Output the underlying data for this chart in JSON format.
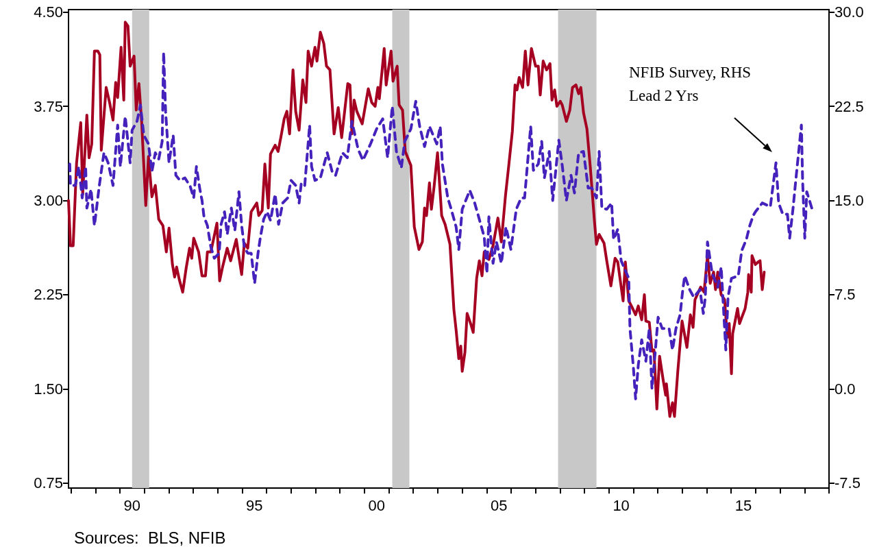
{
  "chart_data": {
    "type": "line",
    "xlim": [
      1987.4,
      2018.5
    ],
    "xticks": [
      {
        "value": 1987.5,
        "label": null
      },
      {
        "value": 1988.5,
        "label": null
      },
      {
        "value": 1989.5,
        "label": null
      },
      {
        "value": 1990,
        "label": "90"
      },
      {
        "value": 1990.5,
        "label": null
      },
      {
        "value": 1991.5,
        "label": null
      },
      {
        "value": 1992.5,
        "label": null
      },
      {
        "value": 1993.5,
        "label": null
      },
      {
        "value": 1994.5,
        "label": null
      },
      {
        "value": 1995,
        "label": "95"
      },
      {
        "value": 1995.5,
        "label": null
      },
      {
        "value": 1996.5,
        "label": null
      },
      {
        "value": 1997.5,
        "label": null
      },
      {
        "value": 1998.5,
        "label": null
      },
      {
        "value": 1999.5,
        "label": null
      },
      {
        "value": 2000,
        "label": "00"
      },
      {
        "value": 2000.5,
        "label": null
      },
      {
        "value": 2001.5,
        "label": null
      },
      {
        "value": 2002.5,
        "label": null
      },
      {
        "value": 2003.5,
        "label": null
      },
      {
        "value": 2004.5,
        "label": null
      },
      {
        "value": 2005,
        "label": "05"
      },
      {
        "value": 2005.5,
        "label": null
      },
      {
        "value": 2006.5,
        "label": null
      },
      {
        "value": 2007.5,
        "label": null
      },
      {
        "value": 2008.5,
        "label": null
      },
      {
        "value": 2009.5,
        "label": null
      },
      {
        "value": 2010,
        "label": "10"
      },
      {
        "value": 2010.5,
        "label": null
      },
      {
        "value": 2011.5,
        "label": null
      },
      {
        "value": 2012.5,
        "label": null
      },
      {
        "value": 2013.5,
        "label": null
      },
      {
        "value": 2014.5,
        "label": null
      },
      {
        "value": 2015,
        "label": "15"
      },
      {
        "value": 2015.5,
        "label": null
      },
      {
        "value": 2016.5,
        "label": null
      },
      {
        "value": 2017.5,
        "label": null
      },
      {
        "value": 2018.5,
        "label": null
      }
    ],
    "ylim": [
      0.71,
      4.52
    ],
    "yticks": [
      {
        "value": 0.75,
        "label": "0.75"
      },
      {
        "value": 1.5,
        "label": "1.50"
      },
      {
        "value": 2.25,
        "label": "2.25"
      },
      {
        "value": 3,
        "label": "3.00"
      },
      {
        "value": 3.75,
        "label": "3.75"
      },
      {
        "value": 4.5,
        "label": "4.50"
      }
    ],
    "y2lim": [
      -7.9,
      30.2
    ],
    "y2ticks": [
      -7.5,
      {
        "value": 0,
        "label": "0.0"
      },
      7.5,
      {
        "value": 15,
        "label": "15.0"
      },
      22.5,
      {
        "value": 30,
        "label": "30.0"
      }
    ],
    "bands": [
      {
        "axis": "x",
        "from": 1990.0,
        "to": 1990.7,
        "color": "#c8c8c8"
      },
      {
        "axis": "x",
        "from": 2000.64,
        "to": 2001.34,
        "color": "#c8c8c8"
      },
      {
        "axis": "x",
        "from": 2007.42,
        "to": 2008.99,
        "color": "#c8c8c8"
      }
    ],
    "annotations": [
      "NFIB Survey, RHS\nLead 2 Yrs",
      "Sources:  BLS, NFIB"
    ],
    "series": [
      {
        "color": "#a50021",
        "line_style": "solid",
        "x": [
          1987.4,
          1987.48,
          1987.59,
          1987.73,
          1987.9,
          1987.98,
          1988.15,
          1988.24,
          1988.35,
          1988.46,
          1988.6,
          1988.68,
          1988.74,
          1988.94,
          1989.08,
          1989.22,
          1989.33,
          1989.41,
          1989.55,
          1989.66,
          1989.72,
          1989.83,
          1989.92,
          1990.08,
          1990.17,
          1990.28,
          1990.39,
          1990.56,
          1990.67,
          1990.81,
          1990.95,
          1991.09,
          1991.26,
          1991.4,
          1991.51,
          1991.65,
          1991.74,
          1991.82,
          1991.93,
          1992.07,
          1992.21,
          1992.35,
          1992.44,
          1992.52,
          1992.72,
          1992.86,
          1993.0,
          1993.08,
          1993.22,
          1993.47,
          1993.58,
          1993.7,
          1993.89,
          1994.03,
          1994.26,
          1994.48,
          1994.59,
          1994.73,
          1994.87,
          1995.1,
          1995.18,
          1995.32,
          1995.43,
          1995.57,
          1995.66,
          1995.85,
          1995.97,
          1996.08,
          1996.22,
          1996.33,
          1996.44,
          1996.58,
          1996.69,
          1996.83,
          1996.98,
          1997.11,
          1997.2,
          1997.34,
          1997.48,
          1997.56,
          1997.7,
          1997.84,
          1997.95,
          1998.09,
          1998.26,
          1998.43,
          1998.57,
          1998.82,
          1998.91,
          1998.99,
          1999.08,
          1999.19,
          1999.41,
          1999.66,
          1999.8,
          1999.94,
          2000.05,
          2000.11,
          2000.31,
          2000.39,
          2000.59,
          2000.67,
          2000.84,
          2000.92,
          2001.06,
          2001.17,
          2001.4,
          2001.54,
          2001.73,
          2001.87,
          2001.96,
          2002.04,
          2002.16,
          2002.24,
          2002.35,
          2002.49,
          2002.66,
          2002.8,
          2003.0,
          2003.16,
          2003.25,
          2003.36,
          2003.44,
          2003.5,
          2003.61,
          2003.7,
          2003.86,
          2003.95,
          2004.09,
          2004.2,
          2004.31,
          2004.4,
          2004.59,
          2004.76,
          2004.96,
          2005.1,
          2005.27,
          2005.41,
          2005.55,
          2005.66,
          2005.74,
          2005.83,
          2005.97,
          2006.08,
          2006.19,
          2006.33,
          2006.5,
          2006.61,
          2006.69,
          2006.81,
          2006.95,
          2007.09,
          2007.17,
          2007.28,
          2007.37,
          2007.51,
          2007.59,
          2007.76,
          2007.9,
          2008.01,
          2008.15,
          2008.26,
          2008.35,
          2008.46,
          2008.6,
          2008.74,
          2008.91,
          2008.99,
          2009.1,
          2009.3,
          2009.41,
          2009.58,
          2009.75,
          2009.86,
          2010.08,
          2010.17,
          2010.31,
          2010.42,
          2010.59,
          2010.7,
          2010.84,
          2010.95,
          2011.01,
          2011.15,
          2011.26,
          2011.34,
          2011.46,
          2011.57,
          2011.71,
          2011.82,
          2011.85,
          2011.99,
          2012.1,
          2012.18,
          2012.32,
          2012.49,
          2012.69,
          2012.83,
          2012.94,
          2013.02,
          2013.25,
          2013.39,
          2013.53,
          2013.64,
          2013.78,
          2013.86,
          2013.95,
          2014.09,
          2014.23,
          2014.34,
          2014.42,
          2014.51,
          2014.56,
          2014.76,
          2014.84,
          2015.07,
          2015.18,
          2015.21,
          2015.32,
          2015.35,
          2015.49,
          2015.6,
          2015.68,
          2015.77,
          2015.85
        ],
        "values": [
          3.0,
          2.64,
          2.64,
          3.3,
          3.62,
          3.05,
          3.68,
          3.34,
          3.45,
          4.19,
          4.19,
          4.16,
          3.4,
          3.9,
          3.78,
          3.64,
          3.94,
          3.82,
          4.22,
          3.8,
          4.42,
          4.39,
          4.07,
          4.15,
          3.72,
          3.93,
          3.63,
          2.96,
          3.35,
          3.03,
          3.12,
          2.85,
          2.8,
          2.59,
          2.78,
          2.49,
          2.39,
          2.47,
          2.37,
          2.27,
          2.46,
          2.62,
          2.54,
          2.7,
          2.59,
          2.4,
          2.4,
          2.59,
          2.59,
          2.82,
          2.36,
          2.47,
          2.62,
          2.52,
          2.69,
          2.41,
          2.66,
          2.62,
          2.91,
          2.98,
          2.88,
          2.92,
          3.29,
          2.94,
          3.37,
          3.44,
          3.39,
          3.5,
          3.65,
          3.71,
          3.53,
          4.04,
          3.71,
          3.56,
          3.96,
          3.78,
          4.19,
          4.07,
          4.22,
          4.11,
          4.34,
          4.25,
          4.07,
          4.04,
          3.53,
          3.74,
          3.5,
          3.93,
          3.92,
          3.53,
          3.8,
          3.71,
          3.61,
          3.89,
          3.78,
          3.75,
          3.9,
          3.81,
          4.21,
          3.92,
          4.19,
          3.95,
          4.07,
          3.76,
          3.72,
          3.39,
          3.28,
          2.79,
          2.61,
          2.67,
          2.94,
          2.88,
          3.14,
          2.93,
          3.11,
          3.38,
          2.88,
          2.81,
          2.65,
          2.13,
          1.97,
          1.74,
          1.84,
          1.64,
          1.79,
          2.1,
          2.01,
          1.95,
          2.38,
          2.52,
          2.4,
          2.59,
          2.53,
          2.64,
          2.86,
          2.67,
          3.04,
          3.29,
          3.55,
          3.92,
          3.88,
          3.98,
          3.9,
          4.19,
          3.92,
          4.21,
          4.07,
          4.07,
          3.84,
          4.11,
          4.04,
          4.09,
          3.8,
          3.88,
          3.75,
          3.79,
          3.76,
          3.63,
          3.72,
          3.9,
          3.92,
          3.85,
          3.9,
          3.7,
          3.57,
          3.26,
          2.83,
          2.65,
          2.73,
          2.66,
          2.52,
          2.32,
          2.54,
          2.51,
          2.2,
          2.51,
          2.2,
          2.16,
          2.09,
          2.16,
          2.05,
          2.25,
          2.04,
          2.03,
          1.8,
          1.81,
          1.34,
          1.76,
          1.58,
          1.45,
          1.54,
          1.28,
          1.39,
          1.28,
          1.65,
          2.04,
          1.83,
          2.09,
          1.99,
          2.21,
          2.31,
          2.27,
          2.56,
          2.34,
          2.43,
          2.29,
          2.43,
          2.25,
          2.21,
          1.91,
          2.02,
          1.62,
          1.94,
          2.14,
          2.02,
          2.14,
          2.27,
          2.41,
          2.27,
          2.56,
          2.49,
          2.51,
          2.52,
          2.29,
          2.43
        ]
      },
      {
        "color": "#4422bb",
        "line_style": "dashed",
        "axis": "y2",
        "x": [
          1987.45,
          1987.48,
          1987.68,
          1987.82,
          1987.96,
          1988.1,
          1988.15,
          1988.32,
          1988.46,
          1988.66,
          1988.85,
          1989.02,
          1989.22,
          1989.41,
          1989.52,
          1989.72,
          1989.92,
          1990.0,
          1990.2,
          1990.34,
          1990.48,
          1990.67,
          1990.81,
          1990.95,
          1991.09,
          1991.23,
          1991.29,
          1991.37,
          1991.51,
          1991.68,
          1991.79,
          1991.96,
          1992.16,
          1992.38,
          1992.52,
          1992.63,
          1992.77,
          1992.86,
          1992.94,
          1993.08,
          1993.22,
          1993.36,
          1993.56,
          1993.64,
          1993.78,
          1993.89,
          1994.06,
          1994.2,
          1994.37,
          1994.48,
          1994.59,
          1994.73,
          1994.87,
          1995.01,
          1995.15,
          1995.24,
          1995.38,
          1995.52,
          1995.66,
          1995.85,
          1995.99,
          1996.16,
          1996.36,
          1996.5,
          1996.69,
          1996.83,
          1996.92,
          1997.06,
          1997.26,
          1997.34,
          1997.48,
          1997.7,
          1997.98,
          1998.18,
          1998.32,
          1998.6,
          1998.8,
          1998.99,
          1999.24,
          1999.44,
          1999.75,
          2000.0,
          2000.25,
          2000.45,
          2000.64,
          2000.81,
          2001.01,
          2001.15,
          2001.4,
          2001.6,
          2001.76,
          2001.96,
          2002.16,
          2002.46,
          2002.6,
          2002.69,
          2002.91,
          2003.05,
          2003.25,
          2003.36,
          2003.5,
          2003.81,
          2004.01,
          2004.2,
          2004.4,
          2004.51,
          2004.59,
          2004.76,
          2004.9,
          2005.1,
          2005.29,
          2005.49,
          2005.71,
          2005.91,
          2006.05,
          2006.3,
          2006.41,
          2006.61,
          2006.75,
          2006.86,
          2007.06,
          2007.2,
          2007.45,
          2007.59,
          2007.76,
          2007.95,
          2008.09,
          2008.26,
          2008.46,
          2008.65,
          2008.8,
          2008.99,
          2009.1,
          2009.21,
          2009.41,
          2009.61,
          2009.69,
          2009.86,
          2010.0,
          2010.31,
          2010.36,
          2010.5,
          2010.59,
          2010.7,
          2010.84,
          2011.01,
          2011.15,
          2011.26,
          2011.4,
          2011.51,
          2011.68,
          2011.96,
          2012.1,
          2012.24,
          2012.41,
          2012.52,
          2012.6,
          2012.8,
          2012.97,
          2013.22,
          2013.36,
          2013.44,
          2013.53,
          2013.72,
          2013.95,
          2014.09,
          2014.28,
          2014.37,
          2014.51,
          2014.79,
          2014.93,
          2015.12,
          2015.26,
          2015.4,
          2015.49,
          2015.77,
          2016.1,
          2016.33,
          2016.44,
          2016.61,
          2016.8,
          2016.89,
          2017.03,
          2017.14,
          2017.37,
          2017.42,
          2017.51,
          2017.59,
          2017.84
        ],
        "values": [
          17.9,
          16.2,
          16.2,
          17.7,
          15.2,
          17.7,
          14.4,
          15.9,
          13.0,
          16.2,
          18.8,
          18.0,
          16.2,
          21.0,
          17.7,
          21.7,
          18.0,
          20.6,
          21.3,
          22.6,
          20.2,
          19.5,
          17.3,
          18.8,
          18.3,
          19.7,
          26.8,
          22.1,
          18.0,
          20.2,
          17.0,
          16.6,
          16.8,
          16.1,
          15.2,
          17.7,
          15.9,
          15.0,
          13.7,
          13.0,
          11.3,
          10.4,
          10.8,
          13.1,
          14.1,
          12.3,
          14.4,
          12.6,
          15.7,
          13.0,
          11.3,
          10.8,
          10.8,
          8.4,
          10.8,
          12.0,
          13.5,
          14.1,
          13.4,
          15.5,
          13.1,
          14.8,
          15.2,
          16.6,
          16.2,
          14.8,
          16.4,
          16.2,
          21.0,
          17.7,
          16.6,
          16.8,
          18.8,
          17.3,
          17.0,
          18.8,
          18.4,
          21.3,
          19.1,
          18.2,
          19.5,
          20.7,
          21.5,
          18.4,
          22.5,
          18.9,
          17.6,
          19.7,
          20.7,
          22.9,
          20.9,
          19.3,
          20.9,
          19.5,
          20.9,
          17.9,
          15.2,
          14.3,
          12.9,
          11.1,
          14.3,
          15.8,
          14.8,
          13.5,
          12.1,
          9.2,
          13.7,
          10.0,
          11.7,
          10.0,
          12.9,
          11.1,
          14.3,
          15.2,
          15.2,
          20.9,
          17.4,
          17.9,
          19.7,
          16.8,
          18.9,
          15.0,
          19.8,
          17.8,
          15.0,
          17.0,
          15.6,
          18.8,
          18.9,
          16.0,
          16.0,
          15.2,
          18.9,
          14.4,
          14.3,
          14.8,
          11.9,
          12.7,
          10.2,
          8.8,
          4.8,
          1.7,
          -0.8,
          1.9,
          3.9,
          2.2,
          4.8,
          0.0,
          3.1,
          5.7,
          4.8,
          4.8,
          3.1,
          4.8,
          5.9,
          7.9,
          9.0,
          7.9,
          7.3,
          7.9,
          6.0,
          7.3,
          11.7,
          9.2,
          8.1,
          9.7,
          3.1,
          7.3,
          8.8,
          9.0,
          11.0,
          11.9,
          13.0,
          13.8,
          14.1,
          14.8,
          14.5,
          18.0,
          14.8,
          13.9,
          13.9,
          12.0,
          14.4,
          16.6,
          21.0,
          16.6,
          12.0,
          15.7,
          14.1
        ]
      }
    ]
  }
}
